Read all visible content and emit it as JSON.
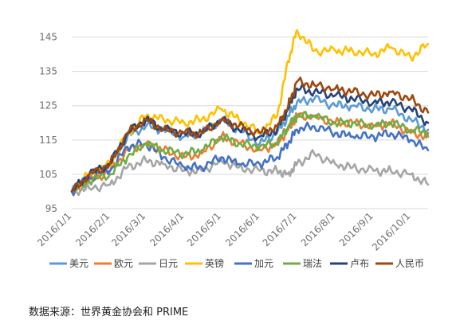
{
  "chart_data": {
    "type": "line",
    "ylim": [
      95,
      150
    ],
    "yticks": [
      95,
      105,
      115,
      125,
      135,
      145
    ],
    "ytick_labels": [
      "95",
      "105",
      "115",
      "125",
      "135",
      "145"
    ],
    "xtick_labels": [
      "2016/1/1",
      "2016/2/1",
      "2016/3/1",
      "2016/4/1",
      "2016/5/1",
      "2016/6/1",
      "2016/7/1",
      "2016/8/1",
      "2016/9/1",
      "2016/10/1"
    ],
    "x_start": "2016/1/1",
    "x_end": "2016/10/15",
    "grid": true,
    "legend_position": "bottom",
    "series": [
      {
        "name": "美元",
        "color": "#5b9bd5",
        "dates": [
          "2016/1/1",
          "2016/1/15",
          "2016/2/1",
          "2016/2/15",
          "2016/3/1",
          "2016/3/15",
          "2016/4/1",
          "2016/4/15",
          "2016/5/1",
          "2016/5/15",
          "2016/6/1",
          "2016/6/15",
          "2016/6/24",
          "2016/7/1",
          "2016/7/15",
          "2016/8/1",
          "2016/8/15",
          "2016/9/1",
          "2016/9/15",
          "2016/10/1",
          "2016/10/15"
        ],
        "values": [
          100,
          104,
          108,
          116,
          119,
          118,
          116,
          117,
          121,
          118,
          114,
          117,
          122,
          126,
          127,
          125,
          125,
          124,
          124,
          121,
          118
        ]
      },
      {
        "name": "欧元",
        "color": "#ed7d31",
        "dates": [
          "2016/1/1",
          "2016/1/15",
          "2016/2/1",
          "2016/2/15",
          "2016/3/1",
          "2016/3/15",
          "2016/4/1",
          "2016/4/15",
          "2016/5/1",
          "2016/5/15",
          "2016/6/1",
          "2016/6/15",
          "2016/6/24",
          "2016/7/1",
          "2016/7/15",
          "2016/8/1",
          "2016/8/15",
          "2016/9/1",
          "2016/9/15",
          "2016/10/1",
          "2016/10/15"
        ],
        "values": [
          100,
          103,
          106,
          112,
          114,
          112,
          110,
          111,
          116,
          114,
          112,
          114,
          118,
          122,
          122,
          120,
          120,
          119,
          120,
          117,
          116
        ]
      },
      {
        "name": "日元",
        "color": "#a5a5a5",
        "dates": [
          "2016/1/1",
          "2016/1/15",
          "2016/2/1",
          "2016/2/15",
          "2016/3/1",
          "2016/3/15",
          "2016/4/1",
          "2016/4/15",
          "2016/5/1",
          "2016/5/15",
          "2016/6/1",
          "2016/6/15",
          "2016/6/24",
          "2016/7/1",
          "2016/7/15",
          "2016/8/1",
          "2016/8/15",
          "2016/9/1",
          "2016/9/15",
          "2016/10/1",
          "2016/10/15"
        ],
        "values": [
          100,
          101,
          102,
          107,
          109,
          108,
          106,
          106,
          109,
          107,
          106,
          106,
          105,
          108,
          111,
          108,
          107,
          106,
          106,
          105,
          102
        ]
      },
      {
        "name": "英镑",
        "color": "#ffc000",
        "dates": [
          "2016/1/1",
          "2016/1/15",
          "2016/2/1",
          "2016/2/15",
          "2016/3/1",
          "2016/3/15",
          "2016/4/1",
          "2016/4/15",
          "2016/5/1",
          "2016/5/15",
          "2016/6/1",
          "2016/6/15",
          "2016/6/24",
          "2016/7/1",
          "2016/7/15",
          "2016/8/1",
          "2016/8/15",
          "2016/9/1",
          "2016/9/15",
          "2016/10/1",
          "2016/10/15"
        ],
        "values": [
          100,
          105,
          108,
          117,
          122,
          121,
          120,
          121,
          124,
          121,
          117,
          122,
          138,
          147,
          141,
          141,
          141,
          140,
          142,
          139,
          143
        ]
      },
      {
        "name": "加元",
        "color": "#4472c4",
        "dates": [
          "2016/1/1",
          "2016/1/15",
          "2016/2/1",
          "2016/2/15",
          "2016/3/1",
          "2016/3/15",
          "2016/4/1",
          "2016/4/15",
          "2016/5/1",
          "2016/5/15",
          "2016/6/1",
          "2016/6/15",
          "2016/6/24",
          "2016/7/1",
          "2016/7/15",
          "2016/8/1",
          "2016/8/15",
          "2016/9/1",
          "2016/9/15",
          "2016/10/1",
          "2016/10/15"
        ],
        "values": [
          100,
          104,
          106,
          113,
          114,
          110,
          107,
          107,
          110,
          108,
          108,
          110,
          114,
          118,
          119,
          117,
          116,
          116,
          117,
          115,
          112
        ]
      },
      {
        "name": "瑞法",
        "color": "#70ad47",
        "dates": [
          "2016/1/1",
          "2016/1/15",
          "2016/2/1",
          "2016/2/15",
          "2016/3/1",
          "2016/3/15",
          "2016/4/1",
          "2016/4/15",
          "2016/5/1",
          "2016/5/15",
          "2016/6/1",
          "2016/6/15",
          "2016/6/24",
          "2016/7/1",
          "2016/7/15",
          "2016/8/1",
          "2016/8/15",
          "2016/9/1",
          "2016/9/15",
          "2016/10/1",
          "2016/10/15"
        ],
        "values": [
          100,
          103,
          105,
          110,
          114,
          112,
          111,
          112,
          116,
          114,
          113,
          114,
          119,
          122,
          122,
          120,
          120,
          119,
          120,
          118,
          117
        ]
      },
      {
        "name": "卢布",
        "color": "#264478",
        "dates": [
          "2016/1/1",
          "2016/1/15",
          "2016/2/1",
          "2016/2/15",
          "2016/3/1",
          "2016/3/15",
          "2016/4/1",
          "2016/4/15",
          "2016/5/1",
          "2016/5/15",
          "2016/6/1",
          "2016/6/15",
          "2016/6/24",
          "2016/7/1",
          "2016/7/15",
          "2016/8/1",
          "2016/8/15",
          "2016/9/1",
          "2016/9/15",
          "2016/10/1",
          "2016/10/15"
        ],
        "values": [
          100,
          105,
          108,
          117,
          121,
          118,
          117,
          117,
          121,
          118,
          116,
          118,
          124,
          130,
          129,
          128,
          127,
          126,
          126,
          124,
          120
        ]
      },
      {
        "name": "人民币",
        "color": "#9e480e",
        "dates": [
          "2016/1/1",
          "2016/1/15",
          "2016/2/1",
          "2016/2/15",
          "2016/3/1",
          "2016/3/15",
          "2016/4/1",
          "2016/4/15",
          "2016/5/1",
          "2016/5/15",
          "2016/6/1",
          "2016/6/15",
          "2016/6/24",
          "2016/7/1",
          "2016/7/15",
          "2016/8/1",
          "2016/8/15",
          "2016/9/1",
          "2016/9/15",
          "2016/10/1",
          "2016/10/15"
        ],
        "values": [
          100,
          105,
          108,
          117,
          121,
          118,
          117,
          117,
          121,
          119,
          117,
          119,
          125,
          132,
          131,
          130,
          129,
          128,
          129,
          127,
          123
        ]
      }
    ]
  },
  "footer": {
    "source_note": "数据来源：世界黄金协会和 PRIME"
  }
}
